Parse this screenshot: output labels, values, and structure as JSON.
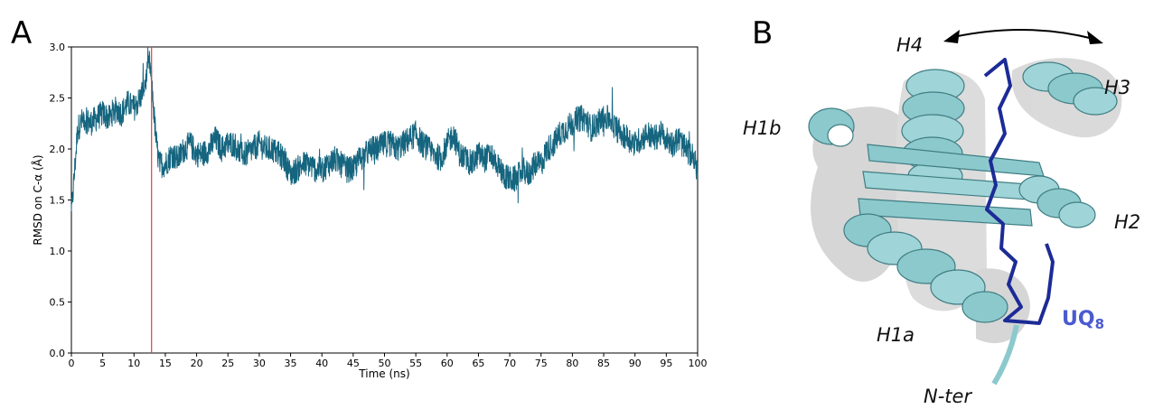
{
  "panels": {
    "a": "A",
    "b": "B"
  },
  "chart_data": {
    "type": "line",
    "title": "",
    "xlabel": "Time (ns)",
    "ylabel": "RMSD on C-α (Å)",
    "xlim": [
      0,
      100
    ],
    "ylim": [
      0,
      3.0
    ],
    "xticks": [
      0,
      5,
      10,
      15,
      20,
      25,
      30,
      35,
      40,
      45,
      50,
      55,
      60,
      65,
      70,
      75,
      80,
      85,
      90,
      95,
      100
    ],
    "yticks": [
      0.0,
      0.5,
      1.0,
      1.5,
      2.0,
      2.5,
      3.0
    ],
    "xtick_labels": [
      "0",
      "5",
      "10",
      "15",
      "20",
      "25",
      "30",
      "35",
      "40",
      "45",
      "50",
      "55",
      "60",
      "65",
      "70",
      "75",
      "80",
      "85",
      "90",
      "95",
      "100"
    ],
    "ytick_labels": [
      "0.0",
      "0.5",
      "1.0",
      "1.5",
      "2.0",
      "2.5",
      "3.0"
    ],
    "grid": false,
    "series": [
      {
        "color": "#15657f",
        "x": [
          0,
          1,
          2,
          3,
          4,
          5,
          6,
          7,
          8,
          9,
          10,
          11,
          12,
          12.5,
          13,
          13.5,
          14,
          15,
          16,
          17,
          18,
          19,
          20,
          21,
          22,
          23,
          24,
          25,
          26,
          27,
          28,
          29,
          30,
          31,
          32,
          33,
          34,
          35,
          36,
          37,
          38,
          39,
          40,
          41,
          42,
          43,
          44,
          45,
          46,
          47,
          48,
          49,
          50,
          51,
          52,
          53,
          54,
          55,
          56,
          57,
          58,
          59,
          60,
          61,
          62,
          63,
          64,
          65,
          66,
          67,
          68,
          69,
          70,
          71,
          72,
          73,
          74,
          75,
          76,
          77,
          78,
          79,
          80,
          81,
          82,
          83,
          84,
          85,
          86,
          87,
          88,
          89,
          90,
          91,
          92,
          93,
          94,
          95,
          96,
          97,
          98,
          99,
          100
        ],
        "y": [
          1.35,
          2.2,
          2.3,
          2.25,
          2.3,
          2.35,
          2.3,
          2.4,
          2.35,
          2.45,
          2.4,
          2.5,
          2.7,
          2.85,
          2.5,
          2.1,
          1.85,
          1.85,
          1.95,
          1.9,
          2.0,
          2.05,
          1.95,
          1.95,
          2.0,
          2.1,
          2.0,
          2.05,
          2.05,
          1.95,
          1.95,
          2.0,
          2.05,
          2.0,
          2.0,
          1.95,
          1.9,
          1.75,
          1.8,
          1.85,
          1.85,
          1.8,
          1.8,
          1.85,
          1.9,
          1.85,
          1.8,
          1.8,
          1.9,
          1.95,
          2.0,
          2.0,
          2.05,
          2.05,
          2.0,
          2.05,
          2.1,
          2.15,
          2.05,
          2.0,
          1.95,
          1.9,
          2.05,
          2.15,
          1.95,
          1.9,
          1.85,
          1.95,
          1.9,
          1.95,
          1.85,
          1.75,
          1.7,
          1.7,
          1.8,
          1.75,
          1.85,
          1.85,
          2.0,
          2.05,
          2.15,
          2.2,
          2.25,
          2.3,
          2.3,
          2.2,
          2.25,
          2.3,
          2.3,
          2.2,
          2.15,
          2.1,
          2.05,
          2.1,
          2.15,
          2.1,
          2.15,
          2.1,
          2.05,
          2.1,
          2.0,
          1.95,
          1.8
        ],
        "noise_amplitude": 0.13
      }
    ],
    "annotations": [
      {
        "type": "vline",
        "x": 12.8,
        "color": "#d9453b"
      }
    ]
  },
  "structure": {
    "labels": {
      "h4": "H4",
      "h3": "H3",
      "h1b": "H1b",
      "h2": "H2",
      "h1a": "H1a",
      "nter": "N-ter",
      "ligand_main": "UQ",
      "ligand_sub": "8"
    },
    "colors": {
      "protein_light": "#c9c9c9",
      "protein_cyan": "#8cc9cd",
      "protein_edge": "#3f7e83",
      "ligand": "#1c2b96",
      "ligand_label": "#4a5bd0"
    }
  }
}
